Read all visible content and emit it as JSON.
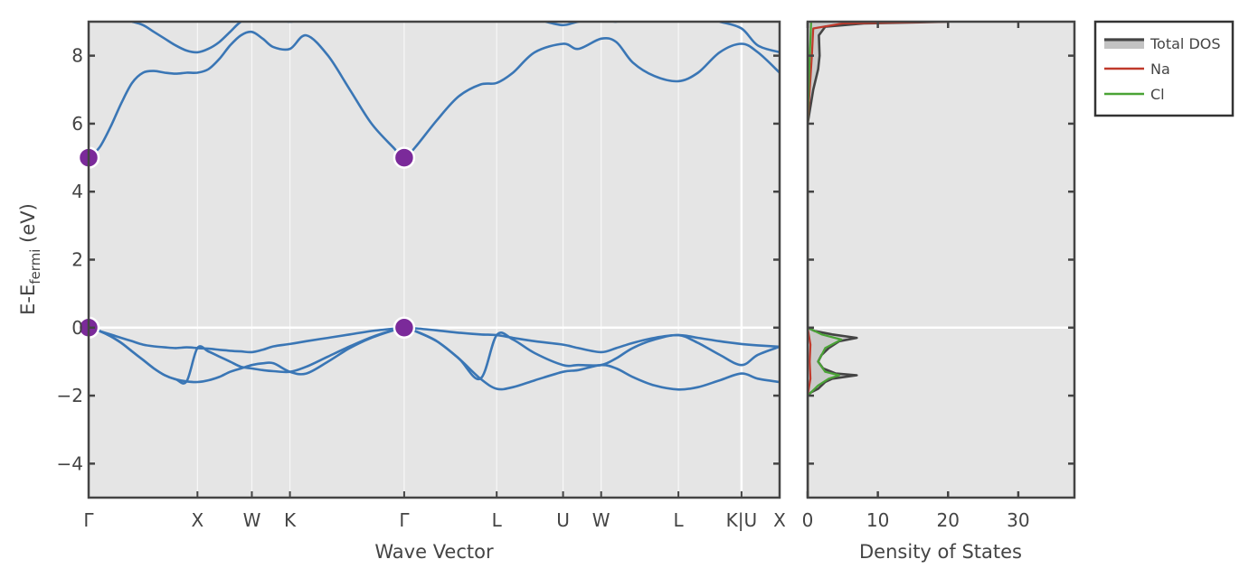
{
  "chart_data": [
    {
      "type": "line",
      "subtype": "band-structure",
      "xlabel": "Wave Vector",
      "ylabel": "E-E",
      "ylabel_subscript": "fermi",
      "ylabel_unit": "(eV)",
      "ylim": [
        -5,
        9
      ],
      "yticks": [
        -4,
        -2,
        0,
        2,
        4,
        6,
        8
      ],
      "ytick_labels": [
        "−4",
        "−2",
        "0",
        "2",
        "4",
        "6",
        "8"
      ],
      "kpath": [
        {
          "label": "Γ",
          "x": 0.0
        },
        {
          "label": "X",
          "x": 1.0
        },
        {
          "label": "W",
          "x": 1.5
        },
        {
          "label": "K",
          "x": 1.85
        },
        {
          "label": "Γ",
          "x": 2.9
        },
        {
          "label": "L",
          "x": 3.75
        },
        {
          "label": "U",
          "x": 4.36
        },
        {
          "label": "W",
          "x": 4.71
        },
        {
          "label": "L",
          "x": 5.42
        },
        {
          "label": "K|U",
          "x": 6.0
        },
        {
          "label": "X",
          "x": 6.35
        }
      ],
      "xlim": [
        0,
        6.35
      ],
      "fermi_level": 0,
      "band_color": "#3a76b5",
      "marker_color": "#7b2a9a",
      "series": [
        {
          "x": [
            0,
            0.1,
            0.2,
            0.3,
            0.4,
            0.5,
            0.6,
            0.7,
            0.8,
            0.9,
            1.0,
            1.1,
            1.2,
            1.3,
            1.4,
            1.5,
            1.6,
            1.7,
            1.85,
            2.0,
            2.2,
            2.4,
            2.6,
            2.8,
            2.9,
            3.0,
            3.2,
            3.4,
            3.6,
            3.75,
            3.9,
            4.1,
            4.36,
            4.5,
            4.71,
            4.85,
            5.0,
            5.2,
            5.42,
            5.6,
            5.8,
            6.0,
            6.15,
            6.35
          ],
          "y": [
            0,
            -0.1,
            -0.2,
            -0.3,
            -0.4,
            -0.5,
            -0.55,
            -0.58,
            -0.6,
            -0.58,
            -0.6,
            -0.62,
            -0.65,
            -0.68,
            -0.7,
            -0.72,
            -0.65,
            -0.55,
            -0.48,
            -0.4,
            -0.3,
            -0.2,
            -0.1,
            -0.03,
            0,
            -0.02,
            -0.08,
            -0.15,
            -0.2,
            -0.22,
            -0.3,
            -0.4,
            -0.5,
            -0.6,
            -0.72,
            -0.6,
            -0.45,
            -0.3,
            -0.22,
            -0.3,
            -0.4,
            -0.48,
            -0.52,
            -0.56
          ]
        },
        {
          "x": [
            0,
            0.1,
            0.2,
            0.3,
            0.4,
            0.5,
            0.6,
            0.7,
            0.8,
            0.9,
            1.0,
            1.1,
            1.2,
            1.3,
            1.4,
            1.5,
            1.6,
            1.7,
            1.85,
            2.0,
            2.2,
            2.4,
            2.6,
            2.8,
            2.9,
            3.0,
            3.2,
            3.4,
            3.6,
            3.75,
            3.9,
            4.1,
            4.36,
            4.5,
            4.71,
            4.85,
            5.0,
            5.2,
            5.42,
            5.6,
            5.8,
            6.0,
            6.15,
            6.35
          ],
          "y": [
            0,
            -0.1,
            -0.25,
            -0.45,
            -0.7,
            -0.95,
            -1.2,
            -1.4,
            -1.52,
            -1.58,
            -1.6,
            -1.55,
            -1.45,
            -1.3,
            -1.2,
            -1.1,
            -1.05,
            -1.05,
            -1.3,
            -1.35,
            -1.0,
            -0.6,
            -0.3,
            -0.08,
            0,
            -0.1,
            -0.4,
            -0.9,
            -1.5,
            -1.8,
            -1.75,
            -1.55,
            -1.3,
            -1.25,
            -1.1,
            -1.2,
            -1.45,
            -1.7,
            -1.82,
            -1.75,
            -1.55,
            -1.35,
            -1.5,
            -1.6
          ]
        },
        {
          "x": [
            0,
            0.1,
            0.2,
            0.3,
            0.4,
            0.5,
            0.6,
            0.7,
            0.8,
            0.9,
            1.0,
            1.1,
            1.2,
            1.3,
            1.4,
            1.5,
            1.6,
            1.7,
            1.85,
            2.0,
            2.2,
            2.4,
            2.6,
            2.8,
            2.9,
            3.0,
            3.2,
            3.4,
            3.6,
            3.75,
            3.9,
            4.1,
            4.36,
            4.5,
            4.71,
            4.85,
            5.0,
            5.2,
            5.42,
            5.6,
            5.8,
            6.0,
            6.15,
            6.35
          ],
          "y": [
            0,
            -0.1,
            -0.25,
            -0.45,
            -0.7,
            -0.95,
            -1.2,
            -1.4,
            -1.52,
            -1.58,
            -0.6,
            -0.7,
            -0.85,
            -1.0,
            -1.15,
            -1.2,
            -1.25,
            -1.28,
            -1.3,
            -1.15,
            -0.85,
            -0.55,
            -0.28,
            -0.07,
            0,
            -0.1,
            -0.4,
            -0.9,
            -1.5,
            -0.22,
            -0.35,
            -0.75,
            -1.1,
            -1.1,
            -1.1,
            -0.9,
            -0.6,
            -0.35,
            -0.22,
            -0.45,
            -0.8,
            -1.1,
            -0.8,
            -0.56
          ]
        },
        {
          "x": [
            0,
            0.1,
            0.2,
            0.3,
            0.4,
            0.5,
            0.6,
            0.7,
            0.8,
            0.9,
            1.0,
            1.1,
            1.2,
            1.3,
            1.4,
            1.5,
            1.6,
            1.7,
            1.85,
            2.0,
            2.2,
            2.4,
            2.6,
            2.8,
            2.9,
            3.0,
            3.2,
            3.4,
            3.6,
            3.75,
            3.9,
            4.1,
            4.36,
            4.5,
            4.71,
            4.85,
            5.0,
            5.2,
            5.42,
            5.6,
            5.8,
            6.0,
            6.15,
            6.35
          ],
          "y": [
            5.0,
            5.3,
            5.9,
            6.6,
            7.2,
            7.5,
            7.55,
            7.5,
            7.47,
            7.5,
            7.5,
            7.6,
            7.9,
            8.3,
            8.6,
            8.7,
            8.5,
            8.25,
            8.2,
            8.6,
            8.0,
            7.0,
            6.0,
            5.3,
            5.0,
            5.3,
            6.1,
            6.8,
            7.15,
            7.2,
            7.5,
            8.1,
            8.35,
            8.2,
            8.5,
            8.4,
            7.8,
            7.4,
            7.25,
            7.5,
            8.1,
            8.35,
            8.1,
            7.5
          ]
        },
        {
          "x": [
            0.4,
            0.5,
            0.6,
            0.7,
            0.8,
            0.9,
            1.0,
            1.1,
            1.2,
            1.3,
            1.4,
            1.5,
            1.6,
            1.7,
            1.85,
            2.0
          ],
          "y": [
            9.0,
            8.9,
            8.7,
            8.5,
            8.3,
            8.15,
            8.1,
            8.2,
            8.4,
            8.7,
            9.0,
            9.1,
            9.2,
            9.1,
            9.0,
            9.1
          ]
        },
        {
          "x": [
            4.2,
            4.36,
            4.5,
            4.71,
            4.85,
            5.0
          ],
          "y": [
            9.0,
            8.9,
            9.0,
            9.1,
            9.0,
            9.2
          ]
        },
        {
          "x": [
            5.8,
            6.0,
            6.15,
            6.35
          ],
          "y": [
            9.0,
            8.8,
            8.3,
            8.1
          ]
        }
      ],
      "markers": [
        {
          "x": 0.0,
          "y": 5.0
        },
        {
          "x": 2.9,
          "y": 5.0
        },
        {
          "x": 0.0,
          "y": 0.0
        },
        {
          "x": 2.9,
          "y": 0.0
        }
      ]
    },
    {
      "type": "area",
      "subtype": "density-of-states",
      "xlabel": "Density of States",
      "xlim": [
        0,
        38
      ],
      "xticks": [
        0,
        10,
        20,
        30
      ],
      "xtick_labels": [
        "0",
        "10",
        "20",
        "30"
      ],
      "ylim": [
        -5,
        9
      ],
      "legend_position": "outside-top-right",
      "series": [
        {
          "name": "Total DOS",
          "color": "#444444",
          "fill": "#aaaaaa",
          "y": [
            -5,
            -2.0,
            -1.9,
            -1.8,
            -1.6,
            -1.5,
            -1.4,
            -1.35,
            -1.2,
            -1.0,
            -0.8,
            -0.6,
            -0.4,
            -0.3,
            -0.2,
            -0.1,
            0,
            6.0,
            7.0,
            7.6,
            8.0,
            8.6,
            8.85,
            8.95,
            9.0
          ],
          "x": [
            0,
            0,
            0.5,
            1.5,
            2.5,
            3.5,
            7,
            4,
            2.2,
            1.5,
            2.0,
            3.0,
            4.5,
            7,
            3.5,
            1.0,
            0,
            0,
            0.8,
            1.5,
            1.7,
            1.6,
            2.5,
            8,
            20
          ]
        },
        {
          "name": "Na",
          "color": "#c0392b",
          "y": [
            -5,
            -2.0,
            -1.5,
            -1.0,
            -0.5,
            0,
            6.0,
            7.0,
            8.0,
            8.8,
            8.95,
            9.0
          ],
          "x": [
            0,
            0,
            0.4,
            0.3,
            0.4,
            0,
            0,
            0.3,
            0.6,
            0.8,
            5,
            20
          ]
        },
        {
          "name": "Cl",
          "color": "#4aa336",
          "y": [
            -5,
            -2.0,
            -1.9,
            -1.7,
            -1.5,
            -1.4,
            -1.3,
            -1.0,
            -0.6,
            -0.35,
            -0.2,
            0,
            6.0,
            8.0,
            9.0
          ],
          "x": [
            0,
            0,
            0.5,
            1.5,
            3.0,
            4.5,
            2.5,
            1.5,
            2.5,
            4.8,
            2.0,
            0,
            0,
            0.3,
            0.5
          ]
        }
      ]
    }
  ]
}
